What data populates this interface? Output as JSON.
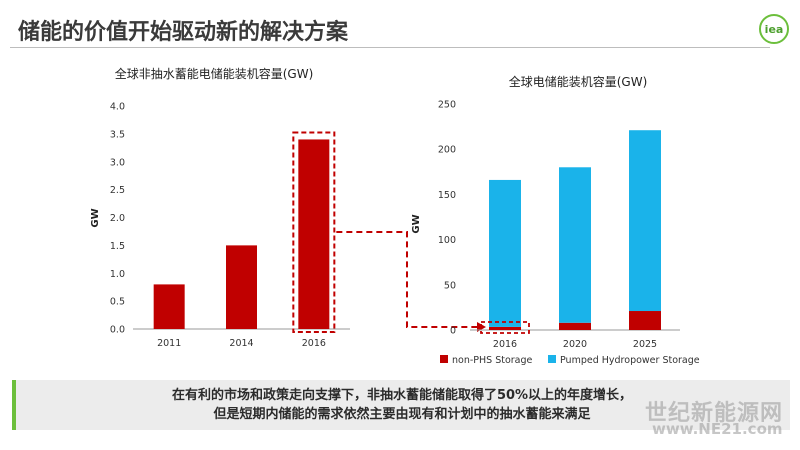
{
  "page": {
    "title": "储能的价值开始驱动新的解决方案",
    "logo_text": "iea",
    "summary_line1": "在有利的市场和政策走向支撑下，非抽水蓄能储能取得了50%以上的年度增长，",
    "summary_line2": "但是短期内储能的需求依然主要由现有和计划中的抽水蓄能来满足",
    "watermark_line1": "世纪新能源网",
    "watermark_line2": "www.NE21.com"
  },
  "colors": {
    "red": "#c00000",
    "blue": "#1ab3ea",
    "accent_green": "#6cbf3c"
  },
  "chart_data": [
    {
      "type": "bar",
      "title": "全球非抽水蓄能电储能装机容量(GW)",
      "xlabel": "",
      "ylabel": "GW",
      "categories": [
        "2011",
        "2014",
        "2016"
      ],
      "values": [
        0.8,
        1.5,
        3.4
      ],
      "ylim": [
        0,
        4.0
      ],
      "yticks": [
        "0.0",
        "0.5",
        "1.0",
        "1.5",
        "2.0",
        "2.5",
        "3.0",
        "3.5",
        "4.0"
      ],
      "grid": false,
      "highlight_category": "2016"
    },
    {
      "type": "bar",
      "stacked": true,
      "title": "全球电储能装机容量(GW)",
      "xlabel": "",
      "ylabel": "GW",
      "categories": [
        "2016",
        "2020",
        "2025"
      ],
      "series": [
        {
          "name": "non-PHS Storage",
          "values": [
            3.4,
            8,
            21
          ]
        },
        {
          "name": "Pumped Hydropower Storage",
          "values": [
            162.6,
            172,
            200
          ]
        }
      ],
      "ylim": [
        0,
        250
      ],
      "yticks": [
        "0",
        "50",
        "100",
        "150",
        "200",
        "250"
      ],
      "grid": false,
      "legend": "bottom"
    }
  ]
}
